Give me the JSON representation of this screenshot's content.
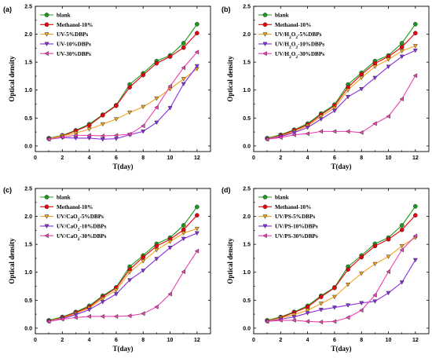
{
  "colors": {
    "blank": "#1a9a1a",
    "methanol": "#e8000b",
    "s5": "#f4a21c",
    "s10": "#8a2be2",
    "s30": "#ee3fae"
  },
  "chart_data": [
    {
      "type": "line",
      "panel_label": "(a)",
      "xlabel": "T(day)",
      "ylabel": "Optical density",
      "xlim": [
        0,
        13
      ],
      "ylim": [
        -0.1,
        2.5
      ],
      "xticks": [
        0,
        2,
        4,
        6,
        8,
        10,
        12
      ],
      "yticks": [
        0.0,
        0.5,
        1.0,
        1.5,
        2.0,
        2.5
      ],
      "x": [
        1,
        2,
        3,
        4,
        5,
        6,
        7,
        8,
        9,
        10,
        11,
        12
      ],
      "legend_position": "top-left",
      "series": [
        {
          "name": "blank",
          "color_key": "blank",
          "marker": "circle",
          "values": [
            0.14,
            0.19,
            0.28,
            0.39,
            0.56,
            0.73,
            1.1,
            1.3,
            1.52,
            1.62,
            1.84,
            2.18
          ]
        },
        {
          "name": "Methanol-10%",
          "color_key": "methanol",
          "marker": "circle",
          "values": [
            0.13,
            0.18,
            0.27,
            0.37,
            0.55,
            0.72,
            1.05,
            1.27,
            1.48,
            1.6,
            1.76,
            2.02
          ]
        },
        {
          "name": "UV-5%DBPs",
          "color_key": "s5",
          "marker": "triangle-down",
          "values": [
            0.13,
            0.18,
            0.23,
            0.3,
            0.39,
            0.48,
            0.6,
            0.7,
            0.85,
            1.02,
            1.2,
            1.38
          ]
        },
        {
          "name": "UV-10%DBPs",
          "color_key": "s10",
          "marker": "triangle-down",
          "values": [
            0.12,
            0.15,
            0.14,
            0.14,
            0.12,
            0.13,
            0.2,
            0.26,
            0.42,
            0.68,
            1.11,
            1.43
          ]
        },
        {
          "name": "UV-30%DBPs",
          "color_key": "s30",
          "marker": "triangle-left",
          "values": [
            0.12,
            0.16,
            0.19,
            0.19,
            0.18,
            0.19,
            0.21,
            0.36,
            0.69,
            1.07,
            1.4,
            1.68
          ]
        }
      ]
    },
    {
      "type": "line",
      "panel_label": "(b)",
      "xlabel": "T(day)",
      "ylabel": "Optical density",
      "xlim": [
        0,
        13
      ],
      "ylim": [
        -0.1,
        2.5
      ],
      "xticks": [
        0,
        2,
        4,
        6,
        8,
        10,
        12
      ],
      "yticks": [
        0.0,
        0.5,
        1.0,
        1.5,
        2.0,
        2.5
      ],
      "x": [
        1,
        2,
        3,
        4,
        5,
        6,
        7,
        8,
        9,
        10,
        11,
        12
      ],
      "legend_position": "top-left",
      "series": [
        {
          "name": "blank",
          "color_key": "blank",
          "marker": "circle",
          "values": [
            0.14,
            0.2,
            0.29,
            0.4,
            0.58,
            0.74,
            1.1,
            1.31,
            1.52,
            1.62,
            1.84,
            2.18
          ]
        },
        {
          "name": "Methanol-10%",
          "color_key": "methanol",
          "marker": "circle",
          "values": [
            0.13,
            0.19,
            0.28,
            0.38,
            0.56,
            0.72,
            1.05,
            1.28,
            1.48,
            1.6,
            1.77,
            2.02
          ]
        },
        {
          "name": "UV/H2O2-5%DBPs",
          "color_key": "s5",
          "marker": "triangle-down",
          "values": [
            0.13,
            0.18,
            0.26,
            0.36,
            0.53,
            0.68,
            1.0,
            1.22,
            1.42,
            1.55,
            1.7,
            1.79
          ]
        },
        {
          "name": "UV/H2O2-10%DBPs",
          "color_key": "s10",
          "marker": "triangle-down",
          "values": [
            0.12,
            0.17,
            0.24,
            0.33,
            0.48,
            0.63,
            0.88,
            1.02,
            1.22,
            1.42,
            1.6,
            1.71
          ]
        },
        {
          "name": "UV/H2O2-30%DBPs",
          "color_key": "s30",
          "marker": "triangle-left",
          "values": [
            0.12,
            0.15,
            0.2,
            0.22,
            0.26,
            0.26,
            0.26,
            0.24,
            0.4,
            0.53,
            0.84,
            1.26
          ]
        }
      ]
    },
    {
      "type": "line",
      "panel_label": "(c)",
      "xlabel": "T(day)",
      "ylabel": "Optical density",
      "xlim": [
        0,
        13
      ],
      "ylim": [
        -0.1,
        2.5
      ],
      "xticks": [
        0,
        2,
        4,
        6,
        8,
        10,
        12
      ],
      "yticks": [
        0.0,
        0.5,
        1.0,
        1.5,
        2.0,
        2.5
      ],
      "x": [
        1,
        2,
        3,
        4,
        5,
        6,
        7,
        8,
        9,
        10,
        11,
        12
      ],
      "legend_position": "top-left",
      "series": [
        {
          "name": "blank",
          "color_key": "blank",
          "marker": "circle",
          "values": [
            0.14,
            0.2,
            0.29,
            0.4,
            0.58,
            0.73,
            1.1,
            1.3,
            1.51,
            1.62,
            1.84,
            2.17
          ]
        },
        {
          "name": "Methanol-10%",
          "color_key": "methanol",
          "marker": "circle",
          "values": [
            0.13,
            0.19,
            0.28,
            0.38,
            0.56,
            0.72,
            1.05,
            1.27,
            1.47,
            1.59,
            1.76,
            2.02
          ]
        },
        {
          "name": "UV/CaO2-5%DBPs",
          "color_key": "s5",
          "marker": "triangle-down",
          "values": [
            0.13,
            0.18,
            0.26,
            0.36,
            0.53,
            0.68,
            1.0,
            1.2,
            1.4,
            1.55,
            1.7,
            1.78
          ]
        },
        {
          "name": "UV/CaO2-10%DBPs",
          "color_key": "s10",
          "marker": "triangle-down",
          "values": [
            0.12,
            0.17,
            0.24,
            0.33,
            0.47,
            0.61,
            0.86,
            1.03,
            1.24,
            1.44,
            1.6,
            1.7
          ]
        },
        {
          "name": "UV/CaO2-30%DBPs",
          "color_key": "s30",
          "marker": "triangle-left",
          "values": [
            0.12,
            0.16,
            0.19,
            0.21,
            0.21,
            0.21,
            0.22,
            0.26,
            0.38,
            0.61,
            1.01,
            1.38
          ]
        }
      ]
    },
    {
      "type": "line",
      "panel_label": "(d)",
      "xlabel": "T(day)",
      "ylabel": "Optical density",
      "xlim": [
        0,
        13
      ],
      "ylim": [
        -0.1,
        2.5
      ],
      "xticks": [
        0,
        2,
        4,
        6,
        8,
        10,
        12
      ],
      "yticks": [
        0.0,
        0.5,
        1.0,
        1.5,
        2.0,
        2.5
      ],
      "x": [
        1,
        2,
        3,
        4,
        5,
        6,
        7,
        8,
        9,
        10,
        11,
        12
      ],
      "legend_position": "top-left",
      "series": [
        {
          "name": "blank",
          "color_key": "blank",
          "marker": "circle",
          "values": [
            0.14,
            0.2,
            0.29,
            0.4,
            0.58,
            0.73,
            1.1,
            1.3,
            1.51,
            1.62,
            1.84,
            2.18
          ]
        },
        {
          "name": "Methanol-10%",
          "color_key": "methanol",
          "marker": "circle",
          "values": [
            0.13,
            0.19,
            0.28,
            0.38,
            0.56,
            0.72,
            1.05,
            1.27,
            1.47,
            1.59,
            1.76,
            2.02
          ]
        },
        {
          "name": "UV/PS-5%DBPs",
          "color_key": "s5",
          "marker": "triangle-down",
          "values": [
            0.13,
            0.18,
            0.24,
            0.32,
            0.44,
            0.56,
            0.78,
            0.98,
            1.15,
            1.28,
            1.47,
            1.62
          ]
        },
        {
          "name": "UV/PS-10%DBPs",
          "color_key": "s10",
          "marker": "triangle-down",
          "values": [
            0.12,
            0.16,
            0.2,
            0.27,
            0.33,
            0.37,
            0.41,
            0.45,
            0.48,
            0.63,
            0.82,
            1.22
          ]
        },
        {
          "name": "UV/PS-30%DBPs",
          "color_key": "s30",
          "marker": "triangle-left",
          "values": [
            0.12,
            0.14,
            0.14,
            0.12,
            0.11,
            0.12,
            0.19,
            0.32,
            0.59,
            1.01,
            1.4,
            1.65
          ]
        }
      ]
    }
  ]
}
